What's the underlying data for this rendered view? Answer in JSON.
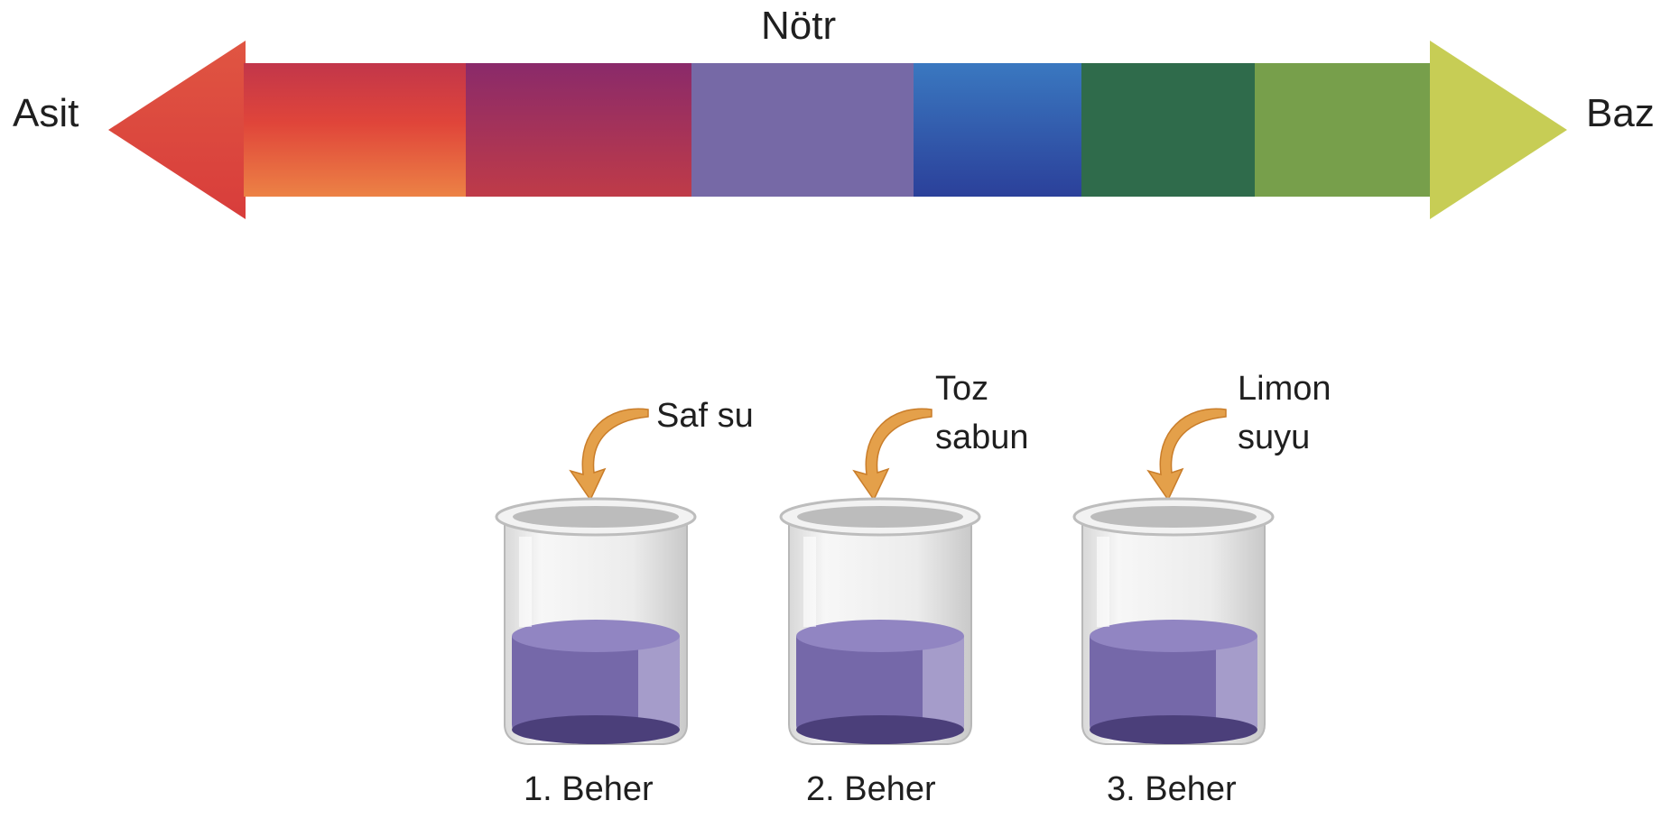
{
  "scale": {
    "acid_label": "Asit",
    "neutral_label": "Nötr",
    "base_label": "Baz",
    "colors": [
      "#e0453a",
      "#a3305f",
      "#7669a6",
      "#3058a4",
      "#2f6b4b",
      "#779f4b"
    ],
    "acid_arrow_color": "#dd4a3c",
    "base_arrow_color": "#c7cd55"
  },
  "beakers": [
    {
      "label": "1. Beher",
      "added": [
        "Saf su"
      ],
      "liquid_color": "#7568a9"
    },
    {
      "label": "2. Beher",
      "added": [
        "Toz",
        "sabun"
      ],
      "liquid_color": "#7568a9"
    },
    {
      "label": "3. Beher",
      "added": [
        "Limon",
        "suyu"
      ],
      "liquid_color": "#7568a9"
    }
  ]
}
